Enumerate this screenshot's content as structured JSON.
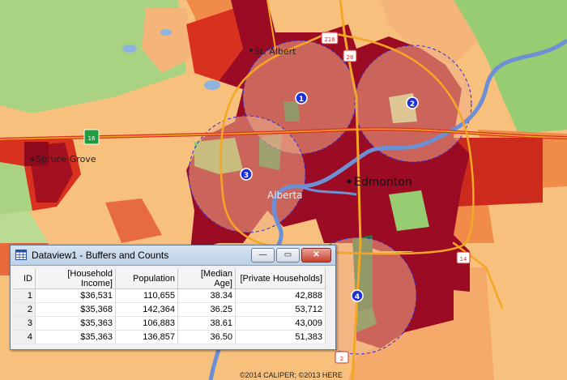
{
  "map": {
    "cities": {
      "st_albert": "St. Albert",
      "spruce_grove": "Spruce Grove",
      "edmonton": "Edmonton",
      "province": "Alberta"
    },
    "highways": {
      "h16": "16",
      "h216": "216",
      "h28": "28",
      "h14": "14",
      "h2": "2"
    },
    "buffers": [
      "1",
      "2",
      "3",
      "4"
    ],
    "copyright": "©2014 CALIPER; ©2013 HERE",
    "colors": {
      "buffer_outline": "#2b2bd0",
      "buffer_fill": "#f2ae8a",
      "marker": "#1f2fd9",
      "highway": "#f5a623",
      "river": "#6c8fd6",
      "water": "#8eb3e0",
      "class_very_high": "#9b0c24",
      "class_high": "#d8311f",
      "class_mid": "#f08b4a",
      "class_low": "#f7c07d",
      "class_green": "#97cc72",
      "class_dark_green": "#1e7a3c"
    }
  },
  "dataview": {
    "title": "Dataview1 - Buffers and Counts",
    "buttons": {
      "minimize": "—",
      "maximize": "▭",
      "close": "✕"
    },
    "columns": [
      "ID",
      "[Household Income]",
      "Population",
      "[Median Age]",
      "[Private Households]"
    ],
    "rows": [
      [
        "1",
        "$36,531",
        "110,655",
        "38.34",
        "42,888"
      ],
      [
        "2",
        "$35,368",
        "142,364",
        "36.25",
        "53,712"
      ],
      [
        "3",
        "$35,363",
        "106,883",
        "38.61",
        "43,009"
      ],
      [
        "4",
        "$35,363",
        "136,857",
        "36.50",
        "51,383"
      ]
    ]
  }
}
